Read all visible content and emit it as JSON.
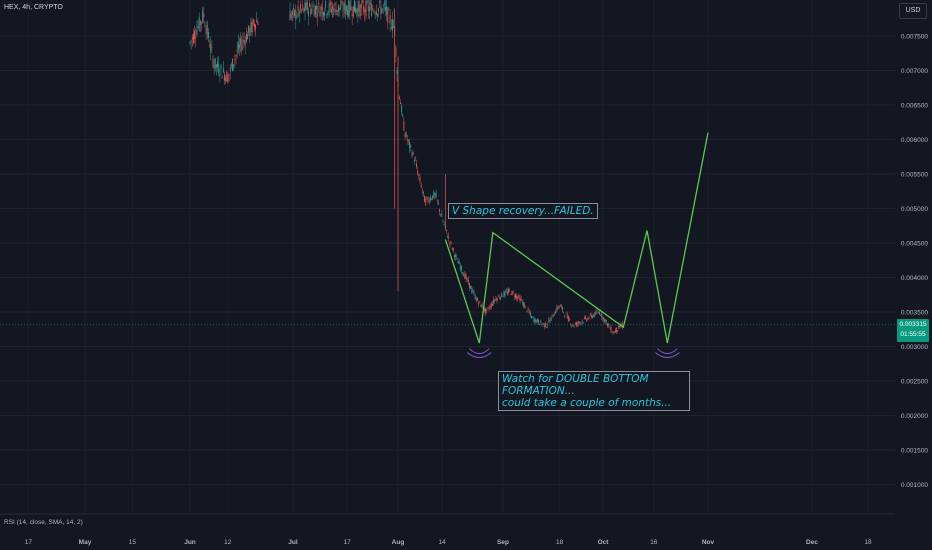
{
  "header": {
    "symbol": "HEX, 4h, CRYPTO",
    "currency_button": "USD"
  },
  "indicator": {
    "label": "RSI (14, close, SMA, 14, 2)"
  },
  "price_tag": {
    "price": "0.003315",
    "countdown": "01:55:55"
  },
  "annotations": {
    "note1": "V Shape recovery...FAILED.",
    "note2_line1": "Watch for DOUBLE BOTTOM FORMATION...",
    "note2_line2": "could take a couple of months..."
  },
  "colors": {
    "background": "#131722",
    "up": "#26a69a",
    "down": "#ef5350",
    "projection": "#5ac94f",
    "arc": "#7e57c2",
    "annotation_text": "#26c6da"
  },
  "chart_data": {
    "type": "line",
    "title": "",
    "xlabel": "",
    "ylabel": "",
    "x_ticks": [
      "17",
      "May",
      "15",
      "Jun",
      "12",
      "Jul",
      "17",
      "Aug",
      "14",
      "Sep",
      "18",
      "Oct",
      "16",
      "Nov",
      "Dec",
      "18"
    ],
    "y_ticks": [
      "0.001000",
      "0.001500",
      "0.002000",
      "0.002500",
      "0.003000",
      "0.003500",
      "0.004000",
      "0.004500",
      "0.005000",
      "0.005500",
      "0.006000",
      "0.006500",
      "0.007000",
      "0.007500"
    ],
    "ylim": [
      0.00075,
      0.0079
    ],
    "price_series": {
      "name": "",
      "x": [
        "2023-06-01",
        "2023-06-05",
        "2023-06-08",
        "2023-06-12",
        "2023-06-15",
        "2023-06-20",
        "2023-06-26",
        "2023-07-01",
        "2023-07-05",
        "2023-07-10",
        "2023-07-18",
        "2023-07-28",
        "2023-07-31",
        "2023-08-01",
        "2023-08-03",
        "2023-08-06",
        "2023-08-09",
        "2023-08-12",
        "2023-08-15",
        "2023-08-18",
        "2023-08-21",
        "2023-08-24",
        "2023-08-27",
        "2023-08-30",
        "2023-09-03",
        "2023-09-06",
        "2023-09-10",
        "2023-09-14",
        "2023-09-18",
        "2023-09-22",
        "2023-09-26",
        "2023-09-30",
        "2023-10-04",
        "2023-10-07"
      ],
      "y": [
        0.0074,
        0.0078,
        0.0071,
        0.0069,
        0.0073,
        0.0077,
        0.0079,
        0.0078,
        0.0079,
        0.0079,
        0.0079,
        0.0079,
        0.0076,
        0.0068,
        0.0061,
        0.0057,
        0.0051,
        0.0052,
        0.0047,
        0.0043,
        0.004,
        0.0037,
        0.0035,
        0.0037,
        0.0038,
        0.0037,
        0.0034,
        0.0033,
        0.0036,
        0.0033,
        0.0034,
        0.0035,
        0.0032,
        0.00332
      ]
    },
    "projection_series": {
      "name": "",
      "x": [
        "2023-08-15",
        "2023-08-25",
        "2023-08-29",
        "2023-10-07",
        "2023-10-14",
        "2023-10-20",
        "2023-11-01"
      ],
      "y": [
        0.00455,
        0.00305,
        0.00465,
        0.00328,
        0.00468,
        0.00305,
        0.0061
      ]
    },
    "bottom_markers": [
      {
        "x": "2023-08-25",
        "y": 0.00297
      },
      {
        "x": "2023-10-20",
        "y": 0.00297
      }
    ],
    "current_price": 0.003315,
    "grid": true
  }
}
